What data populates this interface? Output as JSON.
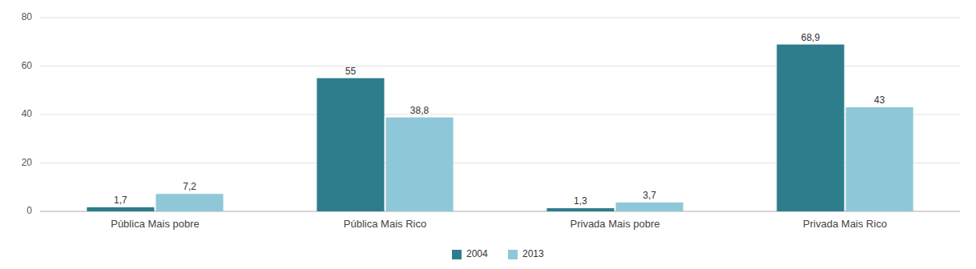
{
  "chart_data": {
    "type": "bar",
    "categories": [
      "Pública Mais pobre",
      "Pública Mais Rico",
      "Privada Mais pobre",
      "Privada Mais Rico"
    ],
    "series": [
      {
        "name": "2004",
        "color": "#2e7d8c",
        "values": [
          1.7,
          55.0,
          1.3,
          68.9
        ],
        "value_labels": [
          "1,7",
          "55",
          "1,3",
          "68,9"
        ]
      },
      {
        "name": "2013",
        "color": "#8ec8d8",
        "values": [
          7.2,
          38.8,
          3.7,
          43.0
        ],
        "value_labels": [
          "7,2",
          "38,8",
          "3,7",
          "43"
        ]
      }
    ],
    "ylim": [
      0,
      80
    ],
    "yticks": [
      0,
      20,
      40,
      60,
      80
    ],
    "grid": true,
    "legend": "bottom",
    "data_labels": true
  }
}
